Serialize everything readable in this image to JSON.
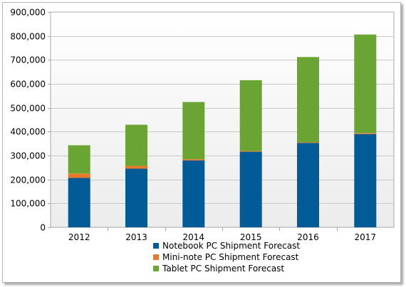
{
  "chart_data": {
    "type": "bar",
    "stacked": true,
    "categories": [
      "2012",
      "2013",
      "2014",
      "2015",
      "2016",
      "2017"
    ],
    "series": [
      {
        "name": "Notebook PC Shipment Forecast",
        "color": "#005b96",
        "values": [
          207000,
          245000,
          280000,
          316000,
          353000,
          390000
        ]
      },
      {
        "name": "Mini-note PC Shipment Forecast",
        "color": "#e8782a",
        "values": [
          18000,
          12000,
          5000,
          3000,
          2000,
          4000
        ]
      },
      {
        "name": "Tablet PC Shipment Forecast",
        "color": "#6aa534",
        "values": [
          118000,
          172000,
          239000,
          296000,
          357000,
          412000
        ]
      }
    ],
    "y_ticks": [
      "0",
      "100,000",
      "200,000",
      "300,000",
      "400,000",
      "500,000",
      "600,000",
      "700,000",
      "800,000",
      "900,000"
    ],
    "ylim": [
      0,
      900000
    ],
    "grid": true,
    "legend_position": "bottom"
  }
}
